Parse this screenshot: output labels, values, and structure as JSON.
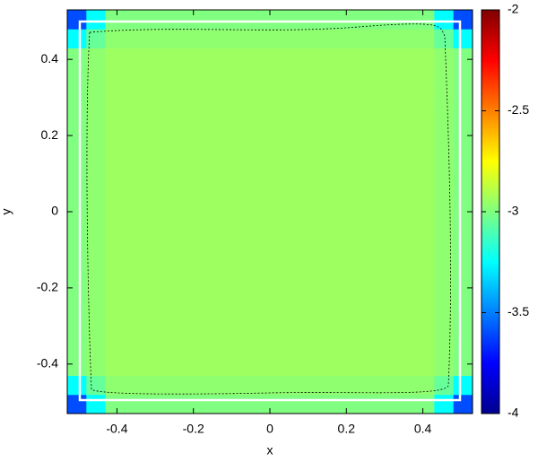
{
  "chart_data": {
    "type": "heatmap",
    "x_label": "x",
    "y_label": "y",
    "x_edges": [
      -0.53,
      -0.48,
      -0.43,
      0.43,
      0.48,
      0.53
    ],
    "y_edges": [
      -0.53,
      -0.48,
      -0.43,
      0.43,
      0.48,
      0.53
    ],
    "z": [
      [
        -3.6,
        -3.25,
        -3.0,
        -3.25,
        -3.6
      ],
      [
        -3.25,
        -3.05,
        -2.97,
        -3.05,
        -3.25
      ],
      [
        -3.0,
        -2.97,
        -2.94,
        -2.97,
        -3.0
      ],
      [
        -3.25,
        -3.05,
        -2.97,
        -3.05,
        -3.25
      ],
      [
        -3.6,
        -3.25,
        -3.0,
        -3.25,
        -3.6
      ]
    ],
    "xlim": [
      -0.53,
      0.53
    ],
    "ylim": [
      -0.53,
      0.53
    ],
    "xticks": [
      -0.4,
      -0.2,
      0,
      0.2,
      0.4
    ],
    "yticks": [
      -0.4,
      -0.2,
      0,
      0.2,
      0.4
    ],
    "colorbar_lim": [
      -4,
      -2
    ],
    "colorbar_ticks": [
      -4,
      -3.5,
      -3,
      -2.5,
      -2
    ],
    "colormap": [
      "#00008f",
      "#0000ff",
      "#00ffff",
      "#ffff00",
      "#ff0000",
      "#800000"
    ],
    "colormap_stops": [
      0,
      0.125,
      0.375,
      0.625,
      0.875,
      1
    ]
  }
}
